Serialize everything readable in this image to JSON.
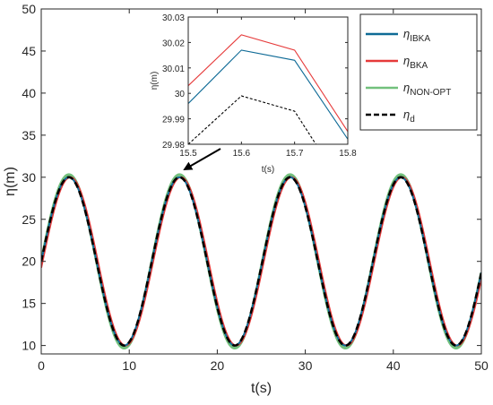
{
  "chart_data": [
    {
      "type": "line",
      "xlabel": "t(s)",
      "ylabel": "η(m)",
      "xlim": [
        0,
        50
      ],
      "ylim": [
        9,
        50
      ],
      "xticks": [
        "0",
        "10",
        "20",
        "30",
        "40",
        "50"
      ],
      "yticks": [
        "10",
        "15",
        "20",
        "25",
        "30",
        "35",
        "40",
        "45",
        "50"
      ],
      "grid": false,
      "legend_position": "top-right",
      "signal": {
        "offset": 20,
        "amplitude": 10,
        "period": 12.566
      },
      "series": [
        {
          "name": "ηIBKA",
          "color": "#0e6a96",
          "style": "solid",
          "amplitude_scale": 1.0,
          "phase_shift": 0.0
        },
        {
          "name": "ηBKA",
          "color": "#e63a3a",
          "style": "solid",
          "amplitude_scale": 1.0,
          "phase_shift": 0.15
        },
        {
          "name": "ηNON-OPT",
          "color": "#72c07c",
          "style": "solid",
          "amplitude_scale": 1.03,
          "phase_shift": 0.0
        },
        {
          "name": "ηd",
          "color": "#000000",
          "style": "dashed",
          "amplitude_scale": 1.0,
          "phase_shift": 0.0
        }
      ]
    },
    {
      "type": "line",
      "inset": true,
      "xlabel": "t(s)",
      "ylabel": "η(m)",
      "xlim": [
        15.5,
        15.8
      ],
      "ylim": [
        29.98,
        30.03
      ],
      "xticks": [
        "15.5",
        "15.6",
        "15.7",
        "15.8"
      ],
      "yticks": [
        "29.98",
        "29.99",
        "30",
        "30.01",
        "30.02",
        "30.03"
      ],
      "grid": false,
      "series": [
        {
          "name": "ηBKA",
          "color": "#e63a3a",
          "style": "solid",
          "x": [
            15.5,
            15.6,
            15.7,
            15.8
          ],
          "y": [
            30.003,
            30.023,
            30.017,
            29.985
          ]
        },
        {
          "name": "ηIBKA",
          "color": "#0e6a96",
          "style": "solid",
          "x": [
            15.5,
            15.6,
            15.7,
            15.8
          ],
          "y": [
            29.996,
            30.017,
            30.013,
            29.982
          ]
        },
        {
          "name": "ηd",
          "color": "#000000",
          "style": "dashed",
          "x": [
            15.5,
            15.6,
            15.7,
            15.74
          ],
          "y": [
            29.98,
            29.999,
            29.993,
            29.98
          ]
        }
      ]
    }
  ],
  "legend": {
    "items": [
      {
        "symbol": "η",
        "sub": "IBKA",
        "color": "#0e6a96",
        "dashed": false
      },
      {
        "symbol": "η",
        "sub": "BKA",
        "color": "#e63a3a",
        "dashed": false
      },
      {
        "symbol": "η",
        "sub": "NON-OPT",
        "color": "#72c07c",
        "dashed": false
      },
      {
        "symbol": "η",
        "sub": "d",
        "color": "#000000",
        "dashed": true
      }
    ]
  }
}
